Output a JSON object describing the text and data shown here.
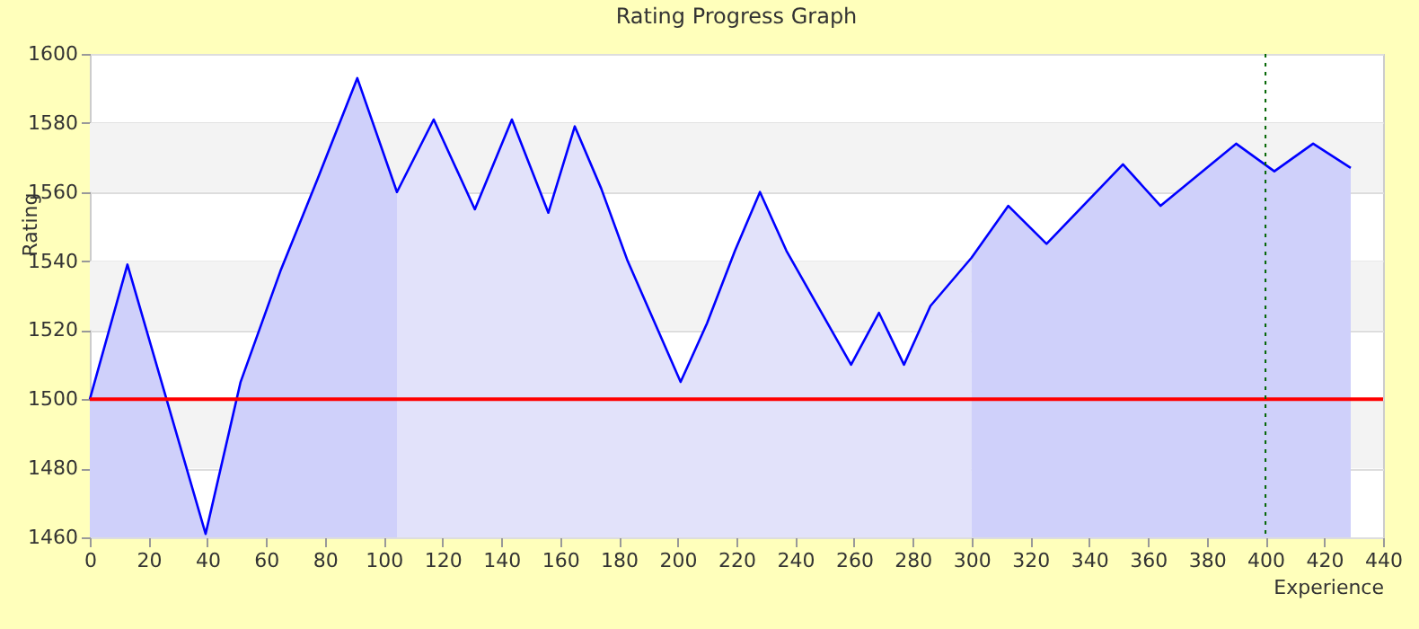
{
  "chart_data": {
    "type": "line",
    "title": "Rating Progress Graph",
    "xlabel": "Experience",
    "ylabel": "Rating",
    "xlim": [
      0,
      440
    ],
    "xticks": [
      0,
      20,
      40,
      60,
      80,
      100,
      120,
      140,
      160,
      180,
      200,
      220,
      240,
      260,
      280,
      300,
      320,
      340,
      360,
      380,
      400,
      420,
      440
    ],
    "ylim": [
      1460,
      1600
    ],
    "yticks": [
      1460,
      1480,
      1500,
      1520,
      1540,
      1560,
      1580,
      1600
    ],
    "grid": "y",
    "marker": "none",
    "line_style": "solid",
    "series": [
      {
        "type": "area",
        "color": "#cfd0fa",
        "x": [
          0,
          12.8,
          39.4,
          51.3,
          64.8,
          77.6,
          91,
          104.5
        ],
        "values": [
          1500,
          1539,
          1461,
          1505,
          1537,
          1564,
          1593,
          1560
        ]
      },
      {
        "type": "area",
        "color": "#e2e2fa",
        "x": [
          104.5,
          117,
          131,
          143.6,
          156,
          165,
          174,
          183,
          201,
          210,
          219.5,
          228,
          237,
          259,
          268.5,
          277,
          286,
          300
        ],
        "values": [
          1560,
          1581,
          1555,
          1581,
          1554,
          1579,
          1561,
          1540,
          1505,
          1522,
          1543,
          1560,
          1543,
          1510,
          1525,
          1510,
          1527,
          1541
        ]
      },
      {
        "type": "area",
        "color": "#cfd0fa",
        "x": [
          300,
          312.5,
          325.5,
          351.5,
          364.3,
          390,
          403,
          416.2,
          429
        ],
        "values": [
          1541,
          1556,
          1545,
          1568,
          1556,
          1574,
          1566,
          1574,
          1567
        ]
      },
      {
        "color": "#0000ff",
        "x": [
          0,
          12.8,
          39.4,
          51.3,
          64.8,
          77.6,
          91,
          104.5,
          117,
          131,
          143.6,
          156,
          165,
          174,
          183,
          201,
          210,
          219.5,
          228,
          237,
          259,
          268.5,
          277,
          286,
          300,
          312.5,
          325.5,
          351.5,
          364.3,
          390,
          403,
          416.2,
          429
        ],
        "values": [
          1500,
          1539,
          1461,
          1505,
          1537,
          1564,
          1593,
          1560,
          1581,
          1555,
          1581,
          1554,
          1579,
          1561,
          1540,
          1505,
          1522,
          1543,
          1560,
          1543,
          1510,
          1525,
          1510,
          1527,
          1541,
          1556,
          1545,
          1568,
          1556,
          1574,
          1566,
          1574,
          1567
        ]
      }
    ],
    "ref_lines": [
      {
        "axis": "y",
        "value": 1500,
        "color": "#ff0000",
        "line_style": "solid"
      },
      {
        "axis": "x",
        "value": 400,
        "color": "#006400",
        "line_style": "dotted"
      }
    ]
  }
}
